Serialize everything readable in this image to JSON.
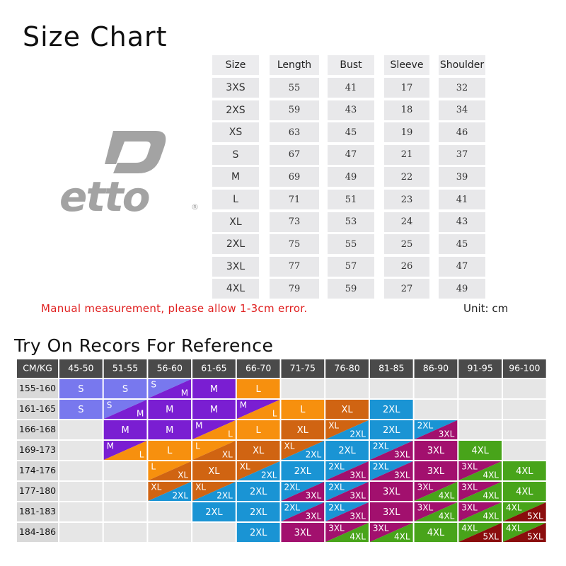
{
  "title": "Size Chart",
  "brand": {
    "logo_text": "etto",
    "registered_mark": "®",
    "logo_color": "#a3a3a3"
  },
  "size_chart": {
    "headers": [
      "Size",
      "Length",
      "Bust",
      "Sleeve",
      "Shoulder"
    ],
    "rows": [
      [
        "3XS",
        "55",
        "41",
        "17",
        "32"
      ],
      [
        "2XS",
        "59",
        "43",
        "18",
        "34"
      ],
      [
        "XS",
        "63",
        "45",
        "19",
        "46"
      ],
      [
        "S",
        "67",
        "47",
        "21",
        "37"
      ],
      [
        "M",
        "69",
        "49",
        "22",
        "39"
      ],
      [
        "L",
        "71",
        "51",
        "23",
        "41"
      ],
      [
        "XL",
        "73",
        "53",
        "24",
        "43"
      ],
      [
        "2XL",
        "75",
        "55",
        "25",
        "45"
      ],
      [
        "3XL",
        "77",
        "57",
        "26",
        "47"
      ],
      [
        "4XL",
        "79",
        "59",
        "27",
        "49"
      ]
    ]
  },
  "note": "Manual measurement, please allow 1-3cm error.",
  "unit": "Unit: cm",
  "reference": {
    "title": "Try On Recors For Reference",
    "corner": "CM/KG",
    "weights": [
      "45-50",
      "51-55",
      "56-60",
      "61-65",
      "66-70",
      "71-75",
      "76-80",
      "81-85",
      "86-90",
      "91-95",
      "96-100"
    ],
    "heights": [
      "155-160",
      "161-165",
      "166-168",
      "169-173",
      "174-176",
      "177-180",
      "181-183",
      "184-186"
    ],
    "colors": {
      "S": "#7878ee",
      "M": "#7a1ed2",
      "L": "#f7900e",
      "XL": "#d06412",
      "2XL": "#1a94d4",
      "3XL": "#a2106e",
      "4XL": "#48a41a",
      "5XL": "#8a0d0d",
      "empty": "#e6e6e6",
      "header": "#4a4a4a",
      "row_header": "#d9d9d9"
    },
    "cells": [
      [
        [
          "S"
        ],
        [
          "S"
        ],
        [
          "S",
          "M"
        ],
        [
          "M"
        ],
        [
          "L"
        ],
        [],
        [],
        [],
        [],
        [],
        []
      ],
      [
        [
          "S"
        ],
        [
          "S",
          "M"
        ],
        [
          "M"
        ],
        [
          "M"
        ],
        [
          "M",
          "L"
        ],
        [
          "L"
        ],
        [
          "XL"
        ],
        [
          "2XL"
        ],
        [],
        [],
        []
      ],
      [
        [],
        [
          "M"
        ],
        [
          "M"
        ],
        [
          "M",
          "L"
        ],
        [
          "L"
        ],
        [
          "XL"
        ],
        [
          "XL",
          "2XL"
        ],
        [
          "2XL"
        ],
        [
          "2XL",
          "3XL"
        ],
        [],
        []
      ],
      [
        [],
        [
          "M",
          "L"
        ],
        [
          "L"
        ],
        [
          "L",
          "XL"
        ],
        [
          "XL"
        ],
        [
          "XL",
          "2XL"
        ],
        [
          "2XL"
        ],
        [
          "2XL",
          "3XL"
        ],
        [
          "3XL"
        ],
        [
          "4XL"
        ],
        []
      ],
      [
        [],
        [],
        [
          "L",
          "XL"
        ],
        [
          "XL"
        ],
        [
          "XL",
          "2XL"
        ],
        [
          "2XL"
        ],
        [
          "2XL",
          "3XL"
        ],
        [
          "2XL",
          "3XL"
        ],
        [
          "3XL"
        ],
        [
          "3XL",
          "4XL"
        ],
        [
          "4XL"
        ]
      ],
      [
        [],
        [],
        [
          "XL",
          "2XL"
        ],
        [
          "XL",
          "2XL"
        ],
        [
          "2XL"
        ],
        [
          "2XL",
          "3XL"
        ],
        [
          "2XL",
          "3XL"
        ],
        [
          "3XL"
        ],
        [
          "3XL",
          "4XL"
        ],
        [
          "3XL",
          "4XL"
        ],
        [
          "4XL"
        ]
      ],
      [
        [],
        [],
        [],
        [
          "2XL"
        ],
        [
          "2XL"
        ],
        [
          "2XL",
          "3XL"
        ],
        [
          "2XL",
          "3XL"
        ],
        [
          "3XL"
        ],
        [
          "3XL",
          "4XL"
        ],
        [
          "3XL",
          "4XL"
        ],
        [
          "4XL",
          "5XL"
        ]
      ],
      [
        [],
        [],
        [],
        [],
        [
          "2XL"
        ],
        [
          "3XL"
        ],
        [
          "3XL",
          "4XL"
        ],
        [
          "3XL",
          "4XL"
        ],
        [
          "4XL"
        ],
        [
          "4XL",
          "5XL"
        ],
        [
          "4XL",
          "5XL"
        ]
      ]
    ]
  }
}
